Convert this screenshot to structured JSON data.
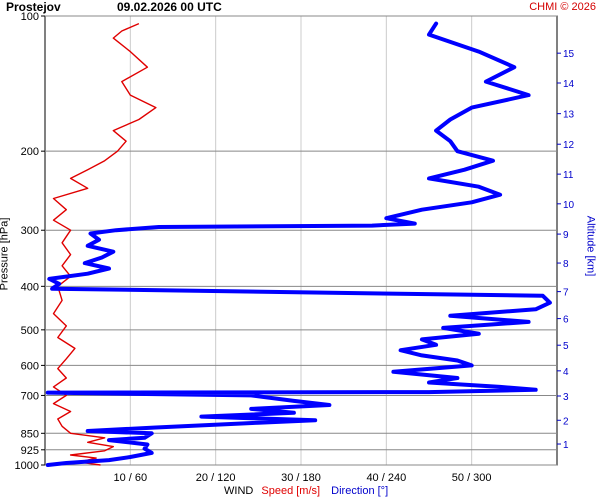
{
  "header": {
    "station": "Prostejov",
    "time": "09.02.2026 00 UTC",
    "credit": "CHMI © 2026"
  },
  "axes": {
    "left_label": "Pressure [hPa]",
    "right_label": "Altitude [km]",
    "bottom_legend": {
      "wind": "WIND",
      "speed": "Speed [m/s]",
      "direction": "Direction [°]"
    }
  },
  "colors": {
    "speed": "#e00000",
    "direction": "#0000ff",
    "grid_h": "#888888",
    "grid_v": "#cccccc",
    "right_axis": "#0000cc"
  },
  "chart_data": {
    "type": "line",
    "yscale": "log-pressure",
    "ylim_hpa": [
      1000,
      100
    ],
    "pressure_ticks": [
      {
        "p": 100,
        "label": "100"
      },
      {
        "p": 200,
        "label": "200"
      },
      {
        "p": 300,
        "label": "300"
      },
      {
        "p": 400,
        "label": "400"
      },
      {
        "p": 500,
        "label": "500"
      },
      {
        "p": 600,
        "label": "600"
      },
      {
        "p": 700,
        "label": "700"
      },
      {
        "p": 850,
        "label": "850"
      },
      {
        "p": 925,
        "label": "925"
      },
      {
        "p": 1000,
        "label": "1000"
      }
    ],
    "altitude_ticks": [
      {
        "km": 1,
        "p": 898,
        "label": "1"
      },
      {
        "km": 2,
        "p": 795,
        "label": "2"
      },
      {
        "km": 3,
        "p": 702,
        "label": "3"
      },
      {
        "km": 4,
        "p": 617,
        "label": "4"
      },
      {
        "km": 5,
        "p": 541,
        "label": "5"
      },
      {
        "km": 6,
        "p": 472,
        "label": "6"
      },
      {
        "km": 7,
        "p": 411,
        "label": "7"
      },
      {
        "km": 8,
        "p": 355,
        "label": "8"
      },
      {
        "km": 9,
        "p": 306,
        "label": "9"
      },
      {
        "km": 10,
        "p": 262,
        "label": "10"
      },
      {
        "km": 11,
        "p": 225,
        "label": "11"
      },
      {
        "km": 12,
        "p": 193,
        "label": "12"
      },
      {
        "km": 13,
        "p": 165,
        "label": "13"
      },
      {
        "km": 14,
        "p": 141,
        "label": "14"
      },
      {
        "km": 15,
        "p": 121,
        "label": "15"
      }
    ],
    "x_ticks": [
      {
        "speed": 10,
        "dir": 60,
        "label": "10 / 60"
      },
      {
        "speed": 20,
        "dir": 120,
        "label": "20 / 120"
      },
      {
        "speed": 30,
        "dir": 180,
        "label": "30 / 180"
      },
      {
        "speed": 40,
        "dir": 240,
        "label": "40 / 240"
      },
      {
        "speed": 50,
        "dir": 300,
        "label": "50 / 300"
      }
    ],
    "xlim_speed": [
      0,
      60
    ],
    "xlim_dir": [
      0,
      360
    ],
    "series": [
      {
        "name": "Speed [m/s]",
        "unit": "m/s",
        "points": [
          {
            "p": 1000,
            "v": 6.5
          },
          {
            "p": 985,
            "v": 4
          },
          {
            "p": 965,
            "v": 6
          },
          {
            "p": 950,
            "v": 3
          },
          {
            "p": 930,
            "v": 7
          },
          {
            "p": 910,
            "v": 8
          },
          {
            "p": 890,
            "v": 5
          },
          {
            "p": 870,
            "v": 7
          },
          {
            "p": 850,
            "v": 3
          },
          {
            "p": 820,
            "v": 2
          },
          {
            "p": 790,
            "v": 1.5
          },
          {
            "p": 760,
            "v": 3
          },
          {
            "p": 730,
            "v": 1
          },
          {
            "p": 700,
            "v": 2.5
          },
          {
            "p": 670,
            "v": 1
          },
          {
            "p": 640,
            "v": 2.5
          },
          {
            "p": 610,
            "v": 1.5
          },
          {
            "p": 580,
            "v": 2.5
          },
          {
            "p": 550,
            "v": 3.5
          },
          {
            "p": 520,
            "v": 1.5
          },
          {
            "p": 490,
            "v": 2.5
          },
          {
            "p": 460,
            "v": 1
          },
          {
            "p": 430,
            "v": 2
          },
          {
            "p": 400,
            "v": 1.5
          },
          {
            "p": 380,
            "v": 3
          },
          {
            "p": 360,
            "v": 2
          },
          {
            "p": 340,
            "v": 3
          },
          {
            "p": 320,
            "v": 2
          },
          {
            "p": 300,
            "v": 3
          },
          {
            "p": 285,
            "v": 1
          },
          {
            "p": 270,
            "v": 2.5
          },
          {
            "p": 255,
            "v": 1
          },
          {
            "p": 242,
            "v": 5
          },
          {
            "p": 230,
            "v": 3
          },
          {
            "p": 220,
            "v": 5
          },
          {
            "p": 210,
            "v": 7
          },
          {
            "p": 200,
            "v": 8.5
          },
          {
            "p": 190,
            "v": 9.5
          },
          {
            "p": 180,
            "v": 8
          },
          {
            "p": 170,
            "v": 11
          },
          {
            "p": 160,
            "v": 13
          },
          {
            "p": 150,
            "v": 10
          },
          {
            "p": 140,
            "v": 9
          },
          {
            "p": 130,
            "v": 12
          },
          {
            "p": 120,
            "v": 10
          },
          {
            "p": 112,
            "v": 8
          },
          {
            "p": 108,
            "v": 9
          },
          {
            "p": 104,
            "v": 11
          }
        ]
      },
      {
        "name": "Direction [°]",
        "unit": "deg",
        "points": [
          {
            "p": 1000,
            "dir": 2
          },
          {
            "p": 990,
            "dir": 15
          },
          {
            "p": 975,
            "dir": 45
          },
          {
            "p": 960,
            "dir": 60
          },
          {
            "p": 940,
            "dir": 75
          },
          {
            "p": 920,
            "dir": 70
          },
          {
            "p": 900,
            "dir": 72
          },
          {
            "p": 880,
            "dir": 45
          },
          {
            "p": 870,
            "dir": 70
          },
          {
            "p": 850,
            "dir": 75
          },
          {
            "p": 840,
            "dir": 30
          },
          {
            "p": 825,
            "dir": 78
          },
          {
            "p": 805,
            "dir": 150
          },
          {
            "p": 795,
            "dir": 190
          },
          {
            "p": 780,
            "dir": 110
          },
          {
            "p": 765,
            "dir": 175
          },
          {
            "p": 750,
            "dir": 145
          },
          {
            "p": 735,
            "dir": 200
          },
          {
            "p": 720,
            "dir": 175
          },
          {
            "p": 700,
            "dir": 145
          },
          {
            "p": 690,
            "dir": 2
          },
          {
            "p": 688,
            "dir": 270
          },
          {
            "p": 680,
            "dir": 345
          },
          {
            "p": 670,
            "dir": 320
          },
          {
            "p": 655,
            "dir": 270
          },
          {
            "p": 640,
            "dir": 290
          },
          {
            "p": 620,
            "dir": 245
          },
          {
            "p": 600,
            "dir": 300
          },
          {
            "p": 585,
            "dir": 290
          },
          {
            "p": 570,
            "dir": 265
          },
          {
            "p": 555,
            "dir": 250
          },
          {
            "p": 540,
            "dir": 275
          },
          {
            "p": 525,
            "dir": 265
          },
          {
            "p": 510,
            "dir": 305
          },
          {
            "p": 495,
            "dir": 280
          },
          {
            "p": 480,
            "dir": 340
          },
          {
            "p": 465,
            "dir": 285
          },
          {
            "p": 450,
            "dir": 345
          },
          {
            "p": 435,
            "dir": 355
          },
          {
            "p": 420,
            "dir": 350
          },
          {
            "p": 405,
            "dir": 5
          },
          {
            "p": 395,
            "dir": 10
          },
          {
            "p": 385,
            "dir": 3
          },
          {
            "p": 375,
            "dir": 30
          },
          {
            "p": 365,
            "dir": 45
          },
          {
            "p": 355,
            "dir": 28
          },
          {
            "p": 345,
            "dir": 40
          },
          {
            "p": 335,
            "dir": 48
          },
          {
            "p": 325,
            "dir": 30
          },
          {
            "p": 315,
            "dir": 38
          },
          {
            "p": 305,
            "dir": 32
          },
          {
            "p": 300,
            "dir": 50
          },
          {
            "p": 295,
            "dir": 80
          },
          {
            "p": 293,
            "dir": 230
          },
          {
            "p": 290,
            "dir": 260
          },
          {
            "p": 282,
            "dir": 240
          },
          {
            "p": 270,
            "dir": 265
          },
          {
            "p": 260,
            "dir": 300
          },
          {
            "p": 250,
            "dir": 320
          },
          {
            "p": 240,
            "dir": 305
          },
          {
            "p": 230,
            "dir": 270
          },
          {
            "p": 220,
            "dir": 295
          },
          {
            "p": 210,
            "dir": 315
          },
          {
            "p": 200,
            "dir": 290
          },
          {
            "p": 190,
            "dir": 285
          },
          {
            "p": 180,
            "dir": 275
          },
          {
            "p": 170,
            "dir": 285
          },
          {
            "p": 160,
            "dir": 300
          },
          {
            "p": 150,
            "dir": 340
          },
          {
            "p": 140,
            "dir": 310
          },
          {
            "p": 130,
            "dir": 330
          },
          {
            "p": 120,
            "dir": 305
          },
          {
            "p": 110,
            "dir": 270
          },
          {
            "p": 104,
            "dir": 275
          }
        ]
      }
    ]
  }
}
